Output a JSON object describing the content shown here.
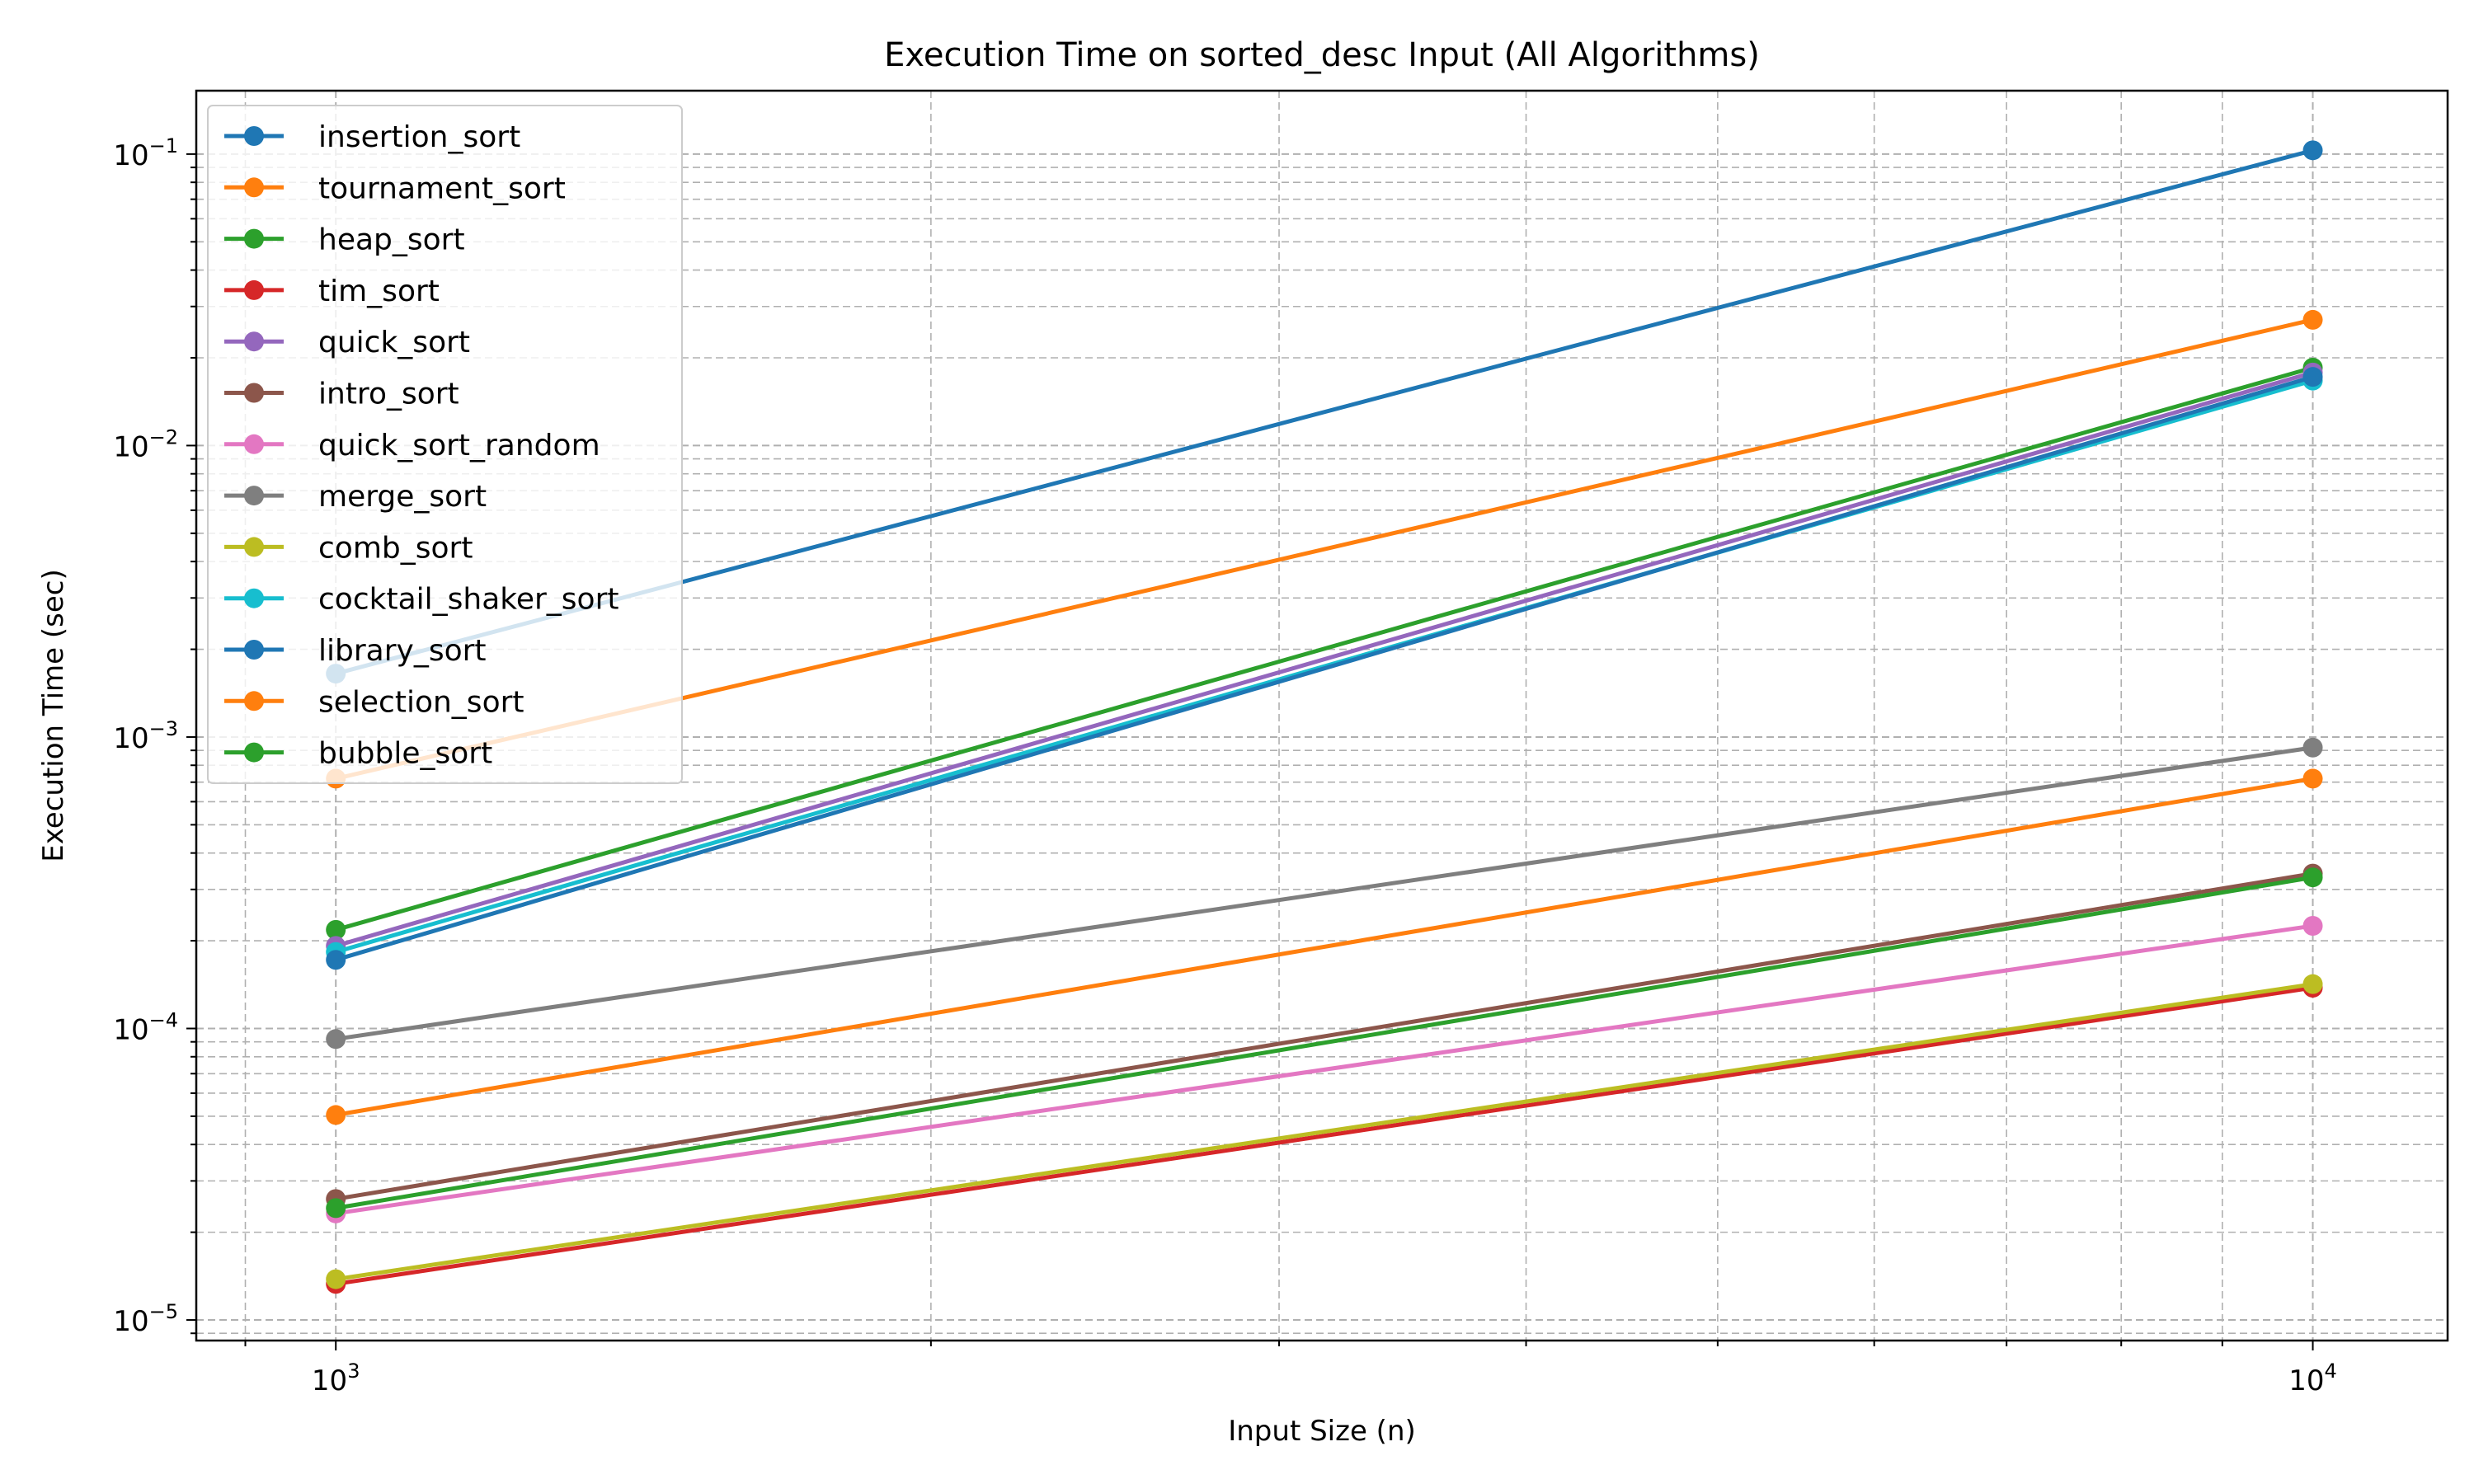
{
  "chart_data": {
    "type": "line",
    "title": "Execution Time on sorted_desc Input (All Algorithms)",
    "xlabel": "Input Size (n)",
    "ylabel": "Execution Time (sec)",
    "xscale": "log",
    "yscale": "log",
    "xlim": [
      850,
      11700
    ],
    "ylim": [
      8.5e-06,
      0.165
    ],
    "xticks": [
      {
        "value": 1000,
        "base": "10",
        "exp": "3"
      },
      {
        "value": 10000,
        "base": "10",
        "exp": "4"
      }
    ],
    "yticks": [
      {
        "value": 1e-05,
        "base": "10",
        "exp": "−5"
      },
      {
        "value": 0.0001,
        "base": "10",
        "exp": "−4"
      },
      {
        "value": 0.001,
        "base": "10",
        "exp": "−3"
      },
      {
        "value": 0.01,
        "base": "10",
        "exp": "−2"
      },
      {
        "value": 0.1,
        "base": "10",
        "exp": "−1"
      }
    ],
    "grid": true,
    "legend_position": "upper-left",
    "x": [
      1000,
      10000
    ],
    "series": [
      {
        "name": "insertion_sort",
        "color": "#1f77b4",
        "values": [
          0.00165,
          0.103
        ]
      },
      {
        "name": "tournament_sort",
        "color": "#ff7f0e",
        "values": [
          0.00072,
          0.027
        ]
      },
      {
        "name": "heap_sort",
        "color": "#2ca02c",
        "values": [
          0.000218,
          0.0185
        ]
      },
      {
        "name": "tim_sort",
        "color": "#d62728",
        "values": [
          1.33e-05,
          0.000138
        ]
      },
      {
        "name": "quick_sort",
        "color": "#9467bd",
        "values": [
          0.000192,
          0.0178
        ]
      },
      {
        "name": "intro_sort",
        "color": "#8c564b",
        "values": [
          2.6e-05,
          0.00034
        ]
      },
      {
        "name": "quick_sort_random",
        "color": "#e377c2",
        "values": [
          2.32e-05,
          0.000225
        ]
      },
      {
        "name": "merge_sort",
        "color": "#7f7f7f",
        "values": [
          9.2e-05,
          0.00092
        ]
      },
      {
        "name": "comb_sort",
        "color": "#bcbd22",
        "values": [
          1.38e-05,
          0.000142
        ]
      },
      {
        "name": "cocktail_shaker_sort",
        "color": "#17becf",
        "values": [
          0.000183,
          0.0167
        ]
      },
      {
        "name": "library_sort",
        "color": "#1f77b4",
        "values": [
          0.000172,
          0.0172
        ]
      },
      {
        "name": "selection_sort",
        "color": "#ff7f0e",
        "values": [
          5.05e-05,
          0.00072
        ]
      },
      {
        "name": "bubble_sort",
        "color": "#2ca02c",
        "values": [
          2.42e-05,
          0.00033
        ]
      }
    ]
  }
}
